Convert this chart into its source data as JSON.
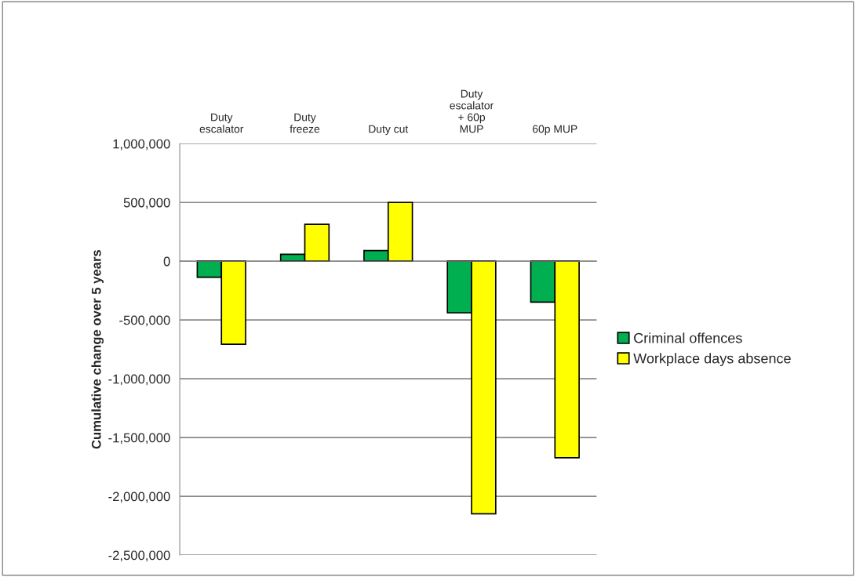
{
  "chart_data": {
    "type": "bar",
    "categories": [
      "Duty\nescalator",
      "Duty\nfreeze",
      "Duty cut",
      "Duty\nescalator\n+ 60p\nMUP",
      "60p MUP"
    ],
    "ylabel": "Cumulative change over 5 years",
    "series": [
      {
        "name": "Criminal offences",
        "color": "#00b050",
        "values": [
          -136000,
          59000,
          91000,
          -439000,
          -348000
        ]
      },
      {
        "name": "Workplace days absence",
        "color": "#ffff00",
        "values": [
          -706000,
          314000,
          500000,
          -2149000,
          -1672000
        ]
      }
    ],
    "ylim": [
      -2500000,
      1000000
    ],
    "yticks": [
      {
        "value": -2500000,
        "label": "-2,500,000"
      },
      {
        "value": -2000000,
        "label": "-2,000,000"
      },
      {
        "value": -1500000,
        "label": "-1,500,000"
      },
      {
        "value": -1000000,
        "label": "-1,000,000"
      },
      {
        "value": -500000,
        "label": "-500,000"
      },
      0,
      {
        "value": 500000,
        "label": "500,000"
      },
      {
        "value": 1000000,
        "label": "1,000,000"
      }
    ],
    "grid": "y",
    "legend": "right"
  }
}
